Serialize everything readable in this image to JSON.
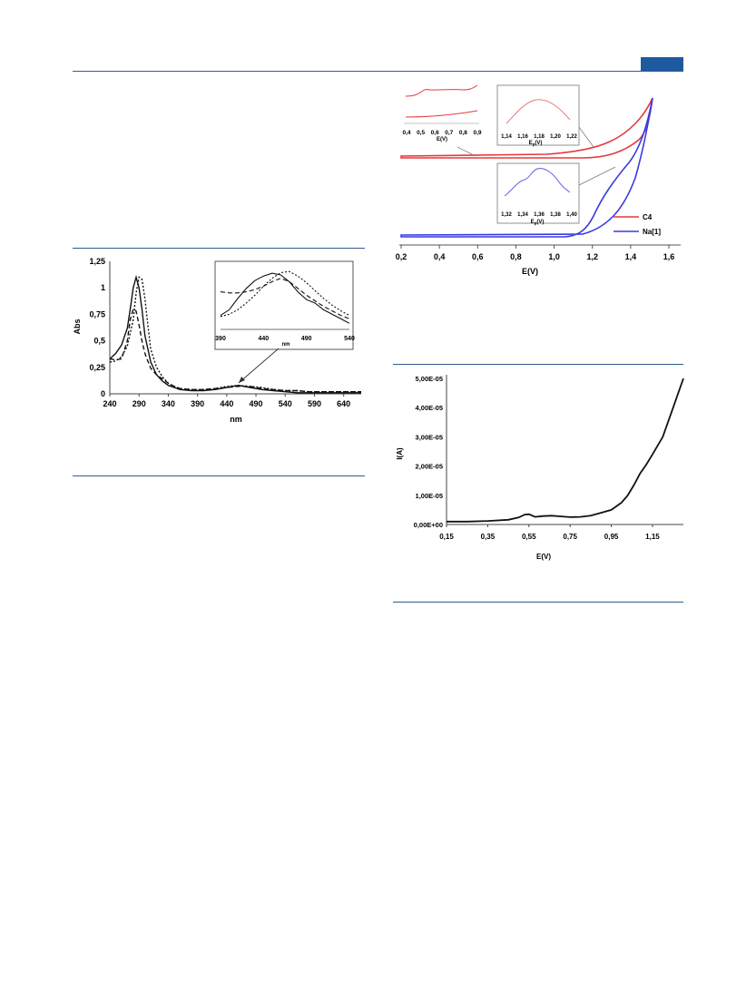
{
  "header": {
    "accent_color": "#1f5aa0"
  },
  "chart_data": [
    {
      "type": "line",
      "xlabel": "nm",
      "ylabel": "Abs",
      "xlim": [
        240,
        670
      ],
      "ylim": [
        0,
        1.25
      ],
      "x_ticks": [
        "240",
        "290",
        "340",
        "390",
        "440",
        "490",
        "540",
        "590",
        "640"
      ],
      "y_ticks": [
        "0",
        "0,25",
        "0,5",
        "0,75",
        "1",
        "1,25"
      ],
      "series": [
        {
          "style": "solid",
          "x": [
            240,
            250,
            260,
            270,
            275,
            280,
            285,
            290,
            295,
            300,
            310,
            320,
            330,
            340,
            350,
            360,
            380,
            400,
            420,
            440,
            460,
            480,
            500,
            520,
            540,
            560,
            580,
            600,
            620,
            640,
            670
          ],
          "y": [
            0.33,
            0.38,
            0.46,
            0.62,
            0.8,
            1.0,
            1.1,
            1.0,
            0.8,
            0.55,
            0.3,
            0.18,
            0.12,
            0.08,
            0.06,
            0.04,
            0.03,
            0.03,
            0.04,
            0.06,
            0.08,
            0.06,
            0.04,
            0.03,
            0.02,
            0.01,
            0.01,
            0.01,
            0.01,
            0.01,
            0.01
          ]
        },
        {
          "style": "dashed",
          "x": [
            240,
            250,
            260,
            270,
            275,
            280,
            285,
            290,
            295,
            300,
            310,
            320,
            330,
            340,
            350,
            360,
            380,
            400,
            420,
            440,
            460,
            480,
            500,
            520,
            540,
            560,
            580,
            600,
            620,
            640,
            670
          ],
          "y": [
            0.33,
            0.32,
            0.33,
            0.5,
            0.7,
            0.8,
            0.78,
            0.65,
            0.5,
            0.38,
            0.24,
            0.18,
            0.14,
            0.1,
            0.07,
            0.05,
            0.04,
            0.04,
            0.05,
            0.06,
            0.07,
            0.07,
            0.05,
            0.04,
            0.03,
            0.03,
            0.02,
            0.02,
            0.02,
            0.02,
            0.02
          ]
        },
        {
          "style": "dotted",
          "x": [
            240,
            250,
            260,
            270,
            280,
            285,
            290,
            295,
            300,
            305,
            310,
            320,
            330,
            340,
            350,
            360,
            380,
            400,
            420,
            440,
            460,
            480,
            500,
            520,
            540,
            560,
            580,
            600,
            620,
            640,
            670
          ],
          "y": [
            0.3,
            0.31,
            0.35,
            0.45,
            0.7,
            0.95,
            1.1,
            1.08,
            0.9,
            0.65,
            0.42,
            0.25,
            0.16,
            0.1,
            0.07,
            0.05,
            0.04,
            0.04,
            0.05,
            0.07,
            0.08,
            0.07,
            0.06,
            0.04,
            0.03,
            0.03,
            0.02,
            0.02,
            0.02,
            0.02,
            0.02
          ]
        }
      ],
      "inset": {
        "xlim": [
          390,
          540
        ],
        "x_ticks": [
          "390",
          "440",
          "490",
          "540"
        ],
        "xlabel": "nm",
        "series": [
          {
            "style": "solid",
            "x": [
              390,
              400,
              410,
              420,
              430,
              440,
              450,
              460,
              470,
              480,
              490,
              500,
              510,
              520,
              530,
              540
            ],
            "y": [
              0.2,
              0.3,
              0.5,
              0.68,
              0.82,
              0.9,
              0.95,
              0.92,
              0.8,
              0.62,
              0.48,
              0.42,
              0.3,
              0.22,
              0.14,
              0.06
            ]
          },
          {
            "style": "dashed",
            "x": [
              390,
              400,
              410,
              420,
              430,
              440,
              450,
              460,
              470,
              480,
              490,
              500,
              510,
              520,
              530,
              540
            ],
            "y": [
              0.62,
              0.6,
              0.6,
              0.62,
              0.66,
              0.72,
              0.8,
              0.86,
              0.8,
              0.68,
              0.56,
              0.46,
              0.36,
              0.28,
              0.2,
              0.14
            ]
          },
          {
            "style": "dotted",
            "x": [
              390,
              400,
              410,
              420,
              430,
              440,
              450,
              460,
              470,
              480,
              490,
              500,
              510,
              520,
              530,
              540
            ],
            "y": [
              0.18,
              0.22,
              0.3,
              0.42,
              0.56,
              0.72,
              0.86,
              0.96,
              0.98,
              0.9,
              0.78,
              0.64,
              0.5,
              0.38,
              0.28,
              0.2
            ]
          }
        ]
      }
    },
    {
      "type": "line",
      "xlabel": "E(V)",
      "xlim": [
        0.2,
        1.65
      ],
      "x_ticks": [
        "0,2",
        "0,4",
        "0,6",
        "0,8",
        "1,0",
        "1,2",
        "1,4",
        "1,6"
      ],
      "legend": [
        "C4",
        "Na[1]"
      ],
      "legend_position": "bottom-right",
      "colors": {
        "C4": "#e8383a",
        "Na[1]": "#3a3ae0"
      },
      "inset_left": {
        "x_ticks": [
          "0,4",
          "0,5",
          "0,6",
          "0,7",
          "0,8",
          "0,9"
        ],
        "xlabel": "E(V)"
      },
      "inset_mid_top": {
        "x_ticks": [
          "1,14",
          "1,16",
          "1,18",
          "1,20",
          "1,22"
        ],
        "xlabel": "E",
        "xlabel_sub": "p",
        "xlabel_unit": "(V)"
      },
      "inset_mid_bottom": {
        "x_ticks": [
          "1,32",
          "1,34",
          "1,36",
          "1,38",
          "1,40"
        ],
        "xlabel": "E",
        "xlabel_sub": "p",
        "xlabel_unit": "(V)"
      }
    },
    {
      "type": "line",
      "xlabel": "E(V)",
      "ylabel": "I(A)",
      "xlim": [
        0.15,
        1.3
      ],
      "ylim": [
        0,
        5e-05
      ],
      "x_ticks": [
        "0,15",
        "0,35",
        "0,55",
        "0,75",
        "0,95",
        "1,15"
      ],
      "y_ticks": [
        "0,00E+00",
        "1,00E-05",
        "2,00E-05",
        "3,00E-05",
        "4,00E-05",
        "5,00E-05"
      ],
      "series": [
        {
          "style": "solid",
          "x": [
            0.15,
            0.25,
            0.35,
            0.45,
            0.5,
            0.53,
            0.55,
            0.58,
            0.62,
            0.66,
            0.7,
            0.75,
            0.8,
            0.85,
            0.9,
            0.95,
            1.0,
            1.03,
            1.06,
            1.09,
            1.12,
            1.15,
            1.2,
            1.25,
            1.3
          ],
          "y": [
            1e-06,
            1e-06,
            1.2e-06,
            1.6e-06,
            2.4e-06,
            3.4e-06,
            3.5e-06,
            2.6e-06,
            2.9e-06,
            3e-06,
            2.8e-06,
            2.5e-06,
            2.6e-06,
            3e-06,
            4e-06,
            5e-06,
            7.5e-06,
            1e-05,
            1.35e-05,
            1.75e-05,
            2.05e-05,
            2.4e-05,
            3e-05,
            4e-05,
            5e-05
          ]
        }
      ]
    }
  ]
}
